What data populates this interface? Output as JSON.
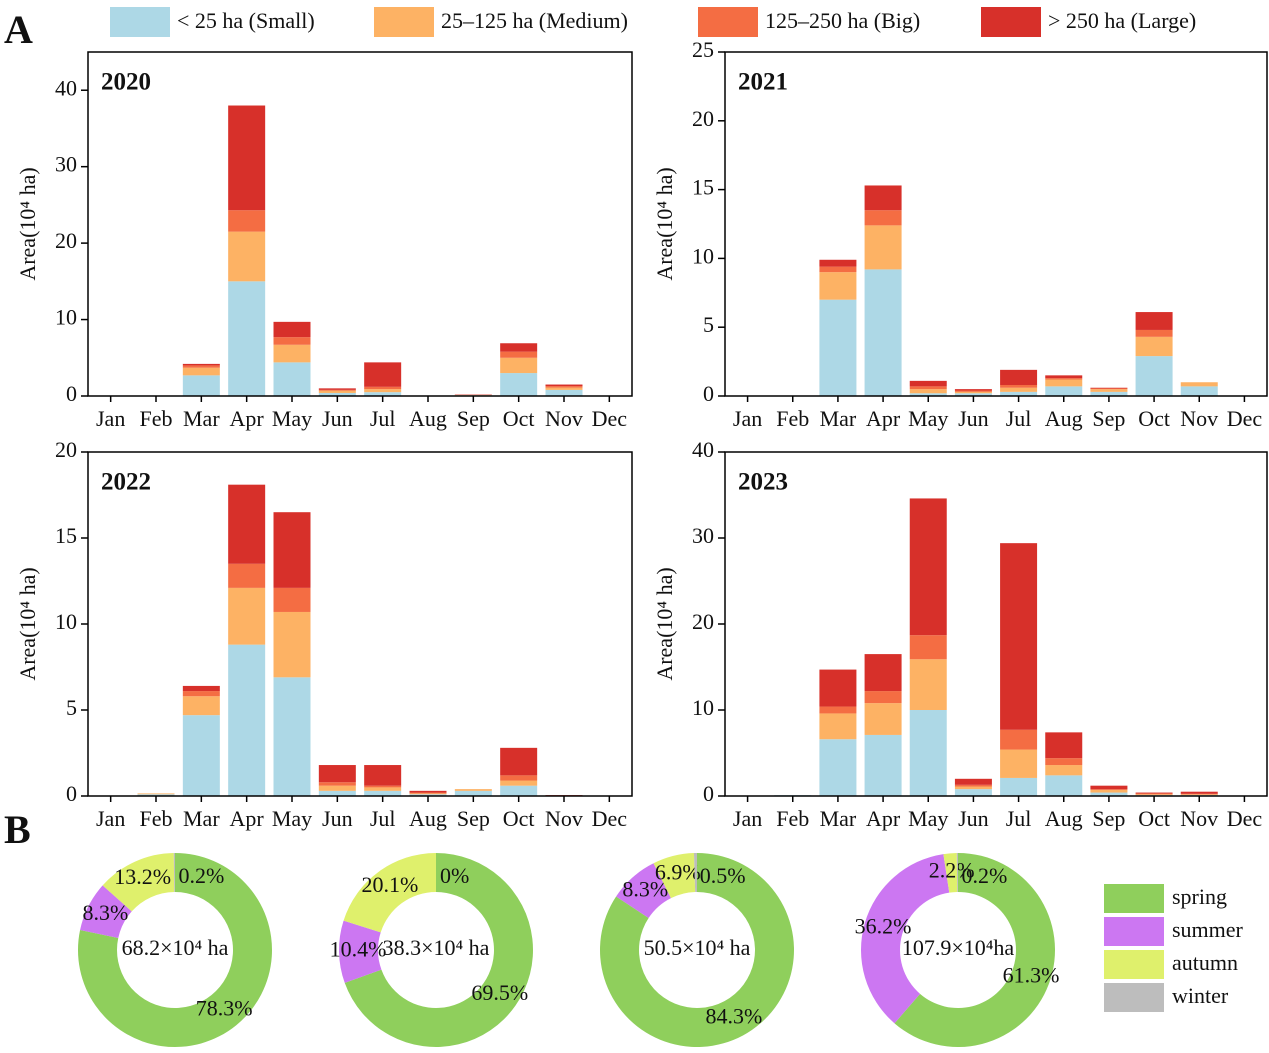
{
  "panel_labels": [
    "A",
    "B"
  ],
  "chart_data": [
    {
      "type": "bar",
      "title": "2020",
      "y_label": "Area(10⁴ ha)",
      "categories": [
        "Jan",
        "Feb",
        "Mar",
        "Apr",
        "May",
        "Jun",
        "Jul",
        "Aug",
        "Sep",
        "Oct",
        "Nov",
        "Dec"
      ],
      "ylim": [
        0,
        45
      ],
      "yticks": [
        0,
        10,
        20,
        30,
        40
      ],
      "stacked": true,
      "series": [
        {
          "name": "< 25 ha (Small)",
          "color": "#add8e6",
          "values": [
            0,
            0,
            2.7,
            15,
            4.4,
            0.4,
            0.5,
            0,
            0.1,
            3.0,
            0.8,
            0
          ]
        },
        {
          "name": "25–125 ha (Medium)",
          "color": "#fdb264",
          "values": [
            0,
            0,
            1.0,
            6.5,
            2.3,
            0.3,
            0.4,
            0,
            0.05,
            2.0,
            0.3,
            0
          ]
        },
        {
          "name": "125–250 ha (Big)",
          "color": "#f46d43",
          "values": [
            0,
            0,
            0.3,
            2.8,
            1.0,
            0.1,
            0.3,
            0,
            0,
            0.8,
            0.2,
            0
          ]
        },
        {
          "name": "> 250 ha (Large)",
          "color": "#d7302a",
          "values": [
            0,
            0,
            0.2,
            13.7,
            2.0,
            0.2,
            3.2,
            0,
            0.05,
            1.1,
            0.2,
            0
          ]
        }
      ]
    },
    {
      "type": "bar",
      "title": "2021",
      "y_label": "Area(10⁴ ha)",
      "categories": [
        "Jan",
        "Feb",
        "Mar",
        "Apr",
        "May",
        "Jun",
        "Jul",
        "Aug",
        "Sep",
        "Oct",
        "Nov",
        "Dec"
      ],
      "ylim": [
        0,
        25
      ],
      "yticks": [
        0,
        5,
        10,
        15,
        20,
        25
      ],
      "stacked": true,
      "series": [
        {
          "name": "< 25 ha (Small)",
          "color": "#add8e6",
          "values": [
            0,
            0,
            7.0,
            9.2,
            0.2,
            0.2,
            0.3,
            0.7,
            0.3,
            2.9,
            0.7,
            0
          ]
        },
        {
          "name": "25–125 ha (Medium)",
          "color": "#fdb264",
          "values": [
            0,
            0,
            2.0,
            3.2,
            0.3,
            0.1,
            0.3,
            0.5,
            0.2,
            1.4,
            0.3,
            0
          ]
        },
        {
          "name": "125–250 ha (Big)",
          "color": "#f46d43",
          "values": [
            0,
            0,
            0.4,
            1.1,
            0.2,
            0.1,
            0.2,
            0.1,
            0.05,
            0.5,
            0,
            0
          ]
        },
        {
          "name": "> 250 ha (Large)",
          "color": "#d7302a",
          "values": [
            0,
            0,
            0.5,
            1.8,
            0.4,
            0.1,
            1.1,
            0.2,
            0.05,
            1.3,
            0,
            0
          ]
        }
      ]
    },
    {
      "type": "bar",
      "title": "2022",
      "y_label": "Area(10⁴ ha)",
      "categories": [
        "Jan",
        "Feb",
        "Mar",
        "Apr",
        "May",
        "Jun",
        "Jul",
        "Aug",
        "Sep",
        "Oct",
        "Nov",
        "Dec"
      ],
      "ylim": [
        0,
        20
      ],
      "yticks": [
        0,
        5,
        10,
        15,
        20
      ],
      "stacked": true,
      "series": [
        {
          "name": "< 25 ha (Small)",
          "color": "#add8e6",
          "values": [
            0,
            0.1,
            4.7,
            8.8,
            6.9,
            0.3,
            0.3,
            0.1,
            0.3,
            0.6,
            0,
            0
          ]
        },
        {
          "name": "25–125 ha (Medium)",
          "color": "#fdb264",
          "values": [
            0,
            0.05,
            1.1,
            3.3,
            3.8,
            0.3,
            0.2,
            0.05,
            0.1,
            0.3,
            0,
            0
          ]
        },
        {
          "name": "125–250 ha (Big)",
          "color": "#f46d43",
          "values": [
            0,
            0,
            0.3,
            1.4,
            1.4,
            0.2,
            0.1,
            0.05,
            0,
            0.3,
            0,
            0
          ]
        },
        {
          "name": "> 250 ha (Large)",
          "color": "#d7302a",
          "values": [
            0,
            0,
            0.3,
            4.6,
            4.4,
            1.0,
            1.2,
            0.1,
            0,
            1.6,
            0.05,
            0
          ]
        }
      ]
    },
    {
      "type": "bar",
      "title": "2023",
      "y_label": "Area(10⁴ ha)",
      "categories": [
        "Jan",
        "Feb",
        "Mar",
        "Apr",
        "May",
        "Jun",
        "Jul",
        "Aug",
        "Sep",
        "Oct",
        "Nov",
        "Dec"
      ],
      "ylim": [
        0,
        40
      ],
      "yticks": [
        0,
        10,
        20,
        30,
        40
      ],
      "stacked": true,
      "series": [
        {
          "name": "< 25 ha (Small)",
          "color": "#add8e6",
          "values": [
            0,
            0.1,
            6.6,
            7.1,
            10.0,
            0.8,
            2.1,
            2.4,
            0.4,
            0.1,
            0.1,
            0
          ]
        },
        {
          "name": "25–125 ha (Medium)",
          "color": "#fdb264",
          "values": [
            0,
            0,
            3.0,
            3.7,
            5.9,
            0.3,
            3.3,
            1.2,
            0.3,
            0.1,
            0.1,
            0
          ]
        },
        {
          "name": "125–250 ha (Big)",
          "color": "#f46d43",
          "values": [
            0,
            0,
            0.8,
            1.4,
            2.8,
            0.2,
            2.3,
            0.8,
            0.1,
            0.1,
            0.05,
            0
          ]
        },
        {
          "name": "> 250 ha (Large)",
          "color": "#d7302a",
          "values": [
            0,
            0,
            4.3,
            4.3,
            15.9,
            0.7,
            21.7,
            3.0,
            0.4,
            0.1,
            0.25,
            0
          ]
        }
      ]
    },
    {
      "type": "donut",
      "center_label": "68.2×10⁴ ha",
      "categories": [
        "spring",
        "summer",
        "autumn",
        "winter"
      ],
      "colors": [
        "#8fcf5c",
        "#cc77f2",
        "#dff06c",
        "#bdbdbd"
      ],
      "values": [
        78.3,
        8.3,
        13.2,
        0.2
      ],
      "value_labels": [
        "78.3%",
        "8.3%",
        "13.2%",
        "0.2%"
      ]
    },
    {
      "type": "donut",
      "center_label": "38.3×10⁴ ha",
      "categories": [
        "spring",
        "summer",
        "autumn",
        "winter"
      ],
      "colors": [
        "#8fcf5c",
        "#cc77f2",
        "#dff06c",
        "#bdbdbd"
      ],
      "values": [
        69.5,
        10.4,
        20.1,
        0
      ],
      "value_labels": [
        "69.5%",
        "10.4%",
        "20.1%",
        "0%"
      ]
    },
    {
      "type": "donut",
      "center_label": "50.5×10⁴ ha",
      "categories": [
        "spring",
        "summer",
        "autumn",
        "winter"
      ],
      "colors": [
        "#8fcf5c",
        "#cc77f2",
        "#dff06c",
        "#bdbdbd"
      ],
      "values": [
        84.3,
        8.3,
        6.9,
        0.5
      ],
      "value_labels": [
        "84.3%",
        "8.3%",
        "6.9%",
        "0.5%"
      ]
    },
    {
      "type": "donut",
      "center_label": "107.9×10⁴ha",
      "categories": [
        "spring",
        "summer",
        "autumn",
        "winter"
      ],
      "colors": [
        "#8fcf5c",
        "#cc77f2",
        "#dff06c",
        "#bdbdbd"
      ],
      "values": [
        61.3,
        36.2,
        2.2,
        0.2
      ],
      "value_labels": [
        "61.3%",
        "36.2%",
        "2.2%",
        "0.2%"
      ]
    }
  ]
}
